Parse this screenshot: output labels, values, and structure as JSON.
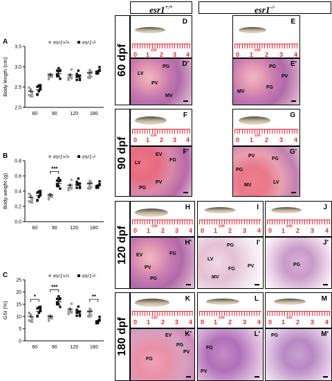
{
  "figure": {
    "header_wt": "esr1",
    "header_wt_sup": "+/+",
    "header_ko": "esr1",
    "header_ko_sup": "-/-",
    "rows": [
      "60 dpf",
      "90 dpf",
      "120 dpf",
      "180 dpf"
    ],
    "ruler_label": "cm",
    "ruler_numbers": [
      "0",
      "1",
      "2",
      "3",
      "4"
    ],
    "panels": {
      "D": "D",
      "E": "E",
      "D1": "D'",
      "E1": "E'",
      "F": "F",
      "G": "G",
      "F1": "F'",
      "G1": "G'",
      "H": "H",
      "I": "I",
      "J": "J",
      "H1": "H'",
      "I1": "I'",
      "J1": "J'",
      "K": "K",
      "L": "L",
      "M": "M",
      "K1": "K'",
      "L1": "L'",
      "M1": "M'"
    },
    "tissue_labels": {
      "d1": [
        "LV",
        "PG",
        "PV",
        "MV"
      ],
      "e1": [
        "PG",
        "PV",
        "FG",
        "MV"
      ],
      "f1": [
        "LV",
        "EV",
        "FG",
        "PG",
        "PV"
      ],
      "g1": [
        "PV",
        "PG",
        "FG",
        "MV",
        "LV"
      ],
      "h1": [
        "EV",
        "FG",
        "PV",
        "PG"
      ],
      "i1": [
        "PG",
        "LV",
        "FG",
        "PV",
        "MV"
      ],
      "j1": [
        "PG"
      ],
      "k1": [
        "EV",
        "FG",
        "PG",
        "PV"
      ],
      "l1": [
        "FG",
        "PV"
      ],
      "m1": [
        "PG"
      ]
    }
  },
  "chart_data": [
    {
      "panel": "A",
      "type": "scatter",
      "ylabel": "Body length (cm)",
      "categories": [
        "60",
        "90",
        "120",
        "180"
      ],
      "ylim": [
        2.0,
        3.5
      ],
      "yticks": [
        "2.0",
        "2.5",
        "3.0",
        "3.5"
      ],
      "legend": [
        "esr1+/+",
        "esr1-/-"
      ],
      "series": [
        {
          "name": "esr1+/+",
          "color": "#9a9a9a",
          "means": [
            2.4,
            2.8,
            2.8,
            2.85
          ]
        },
        {
          "name": "esr1-/-",
          "color": "#111111",
          "means": [
            2.43,
            2.83,
            2.78,
            2.88
          ]
        }
      ],
      "significance": []
    },
    {
      "panel": "B",
      "type": "scatter",
      "ylabel": "Body weight (g)",
      "categories": [
        "60",
        "90",
        "120",
        "180"
      ],
      "ylim": [
        0.0,
        0.8
      ],
      "yticks": [
        "0.0",
        "0.2",
        "0.4",
        "0.6",
        "0.8"
      ],
      "legend": [
        "esr1+/+",
        "esr1-/-"
      ],
      "series": [
        {
          "name": "esr1+/+",
          "color": "#9a9a9a",
          "means": [
            0.32,
            0.35,
            0.48,
            0.5
          ]
        },
        {
          "name": "esr1-/-",
          "color": "#111111",
          "means": [
            0.34,
            0.5,
            0.5,
            0.47
          ]
        }
      ],
      "significance": [
        {
          "category": "90",
          "label": "***"
        }
      ]
    },
    {
      "panel": "C",
      "type": "scatter",
      "ylabel": "GSI (%)",
      "categories": [
        "60",
        "90",
        "120",
        "180"
      ],
      "ylim": [
        0,
        25
      ],
      "yticks": [
        "0",
        "5",
        "10",
        "15",
        "20",
        "25"
      ],
      "legend": [
        "esr1+/+",
        "esr1-/-"
      ],
      "series": [
        {
          "name": "esr1+/+",
          "color": "#9a9a9a",
          "means": [
            10,
            10,
            13,
            12
          ]
        },
        {
          "name": "esr1-/-",
          "color": "#111111",
          "means": [
            12,
            16,
            12,
            8
          ]
        }
      ],
      "significance": [
        {
          "category": "60",
          "label": "*"
        },
        {
          "category": "90",
          "label": "***"
        },
        {
          "category": "180",
          "label": "**"
        }
      ]
    }
  ]
}
